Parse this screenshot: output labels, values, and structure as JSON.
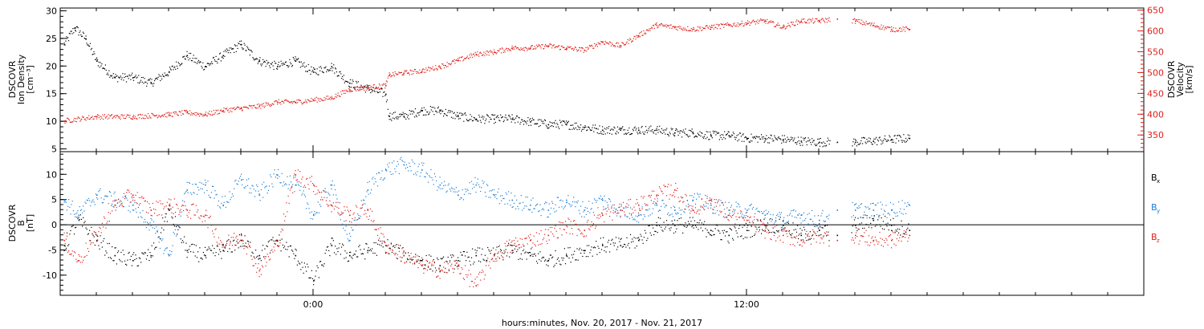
{
  "colors": {
    "black": "#000000",
    "red": "#e0201b",
    "blue": "#1c7ed6"
  },
  "xlabel": "hours:minutes, Nov. 20, 2017 - Nov. 21, 2017",
  "x_axis": {
    "start_hours": -7.0,
    "end_hours": 23.0,
    "ticks": [
      {
        "value": 0,
        "label": "0:00"
      },
      {
        "value": 12,
        "label": "12:00"
      }
    ]
  },
  "chart_data": [
    {
      "type": "scatter",
      "panel": "plasma",
      "grid": false,
      "left_axis": {
        "label_lines": [
          "DSCOVR",
          "Ion Density",
          "[cm⁻³]"
        ],
        "ylim": [
          4.5,
          30.5
        ],
        "ticks": [
          5,
          10,
          15,
          20,
          25,
          30
        ],
        "color": "#000000"
      },
      "right_axis": {
        "label_lines": [
          "DSCOVR",
          "Velocity",
          "[km/s]"
        ],
        "ylim": [
          310,
          655
        ],
        "ticks": [
          350,
          400,
          450,
          500,
          550,
          600,
          650
        ],
        "color": "#e0201b"
      },
      "series": [
        {
          "axis": "left",
          "color": "#000000",
          "x": [
            -6.9,
            -6.6,
            -6.3,
            -6.0,
            -5.5,
            -5.0,
            -4.5,
            -4.0,
            -3.5,
            -3.0,
            -2.5,
            -2.0,
            -1.5,
            -1.0,
            -0.5,
            0.0,
            0.5,
            1.0,
            1.5,
            2.0,
            2.1,
            2.5,
            3.0,
            3.5,
            4.0,
            4.5,
            5.0,
            5.5,
            6.0,
            6.5,
            7.0,
            7.5,
            8.0,
            8.5,
            9.0,
            9.5,
            10.0,
            10.5,
            11.0,
            11.5,
            12.0,
            12.5,
            13.0,
            13.5,
            14.0,
            14.5,
            15.0,
            15.5,
            16.0,
            16.5
          ],
          "values": [
            24,
            27,
            25,
            21,
            18,
            18,
            17,
            19,
            22,
            20,
            22,
            24,
            21,
            20,
            21,
            19,
            20,
            17,
            16,
            15,
            11,
            11,
            12,
            12,
            11,
            10.5,
            10.5,
            10.5,
            10,
            9.5,
            9.5,
            9,
            8.5,
            8.5,
            8.5,
            8.5,
            8,
            8,
            7.5,
            7.5,
            7,
            7,
            6.8,
            6.5,
            6.3,
            6.3,
            6.3,
            6.5,
            6.8,
            7
          ]
        },
        {
          "axis": "right",
          "color": "#e0201b",
          "x": [
            -6.9,
            -6.0,
            -5.0,
            -4.0,
            -3.5,
            -3.0,
            -2.5,
            -2.0,
            -1.5,
            -1.0,
            -0.5,
            0.0,
            0.5,
            1.0,
            1.5,
            2.0,
            2.1,
            2.5,
            3.0,
            3.5,
            4.0,
            4.5,
            5.0,
            5.5,
            6.0,
            6.5,
            7.0,
            7.5,
            8.0,
            8.5,
            9.0,
            9.5,
            10.0,
            10.5,
            11.0,
            11.5,
            12.0,
            12.5,
            13.0,
            13.5,
            14.0,
            14.5,
            15.0,
            15.5,
            16.0,
            16.5
          ],
          "values": [
            385,
            395,
            395,
            400,
            405,
            400,
            410,
            415,
            420,
            430,
            430,
            435,
            440,
            460,
            465,
            470,
            495,
            500,
            505,
            515,
            530,
            545,
            550,
            560,
            560,
            565,
            560,
            555,
            575,
            565,
            590,
            615,
            610,
            605,
            610,
            615,
            620,
            625,
            610,
            625,
            625,
            630,
            625,
            615,
            605,
            605
          ]
        }
      ]
    },
    {
      "type": "scatter",
      "panel": "magnetic",
      "grid": false,
      "left_axis": {
        "label_lines": [
          "DSCOVR",
          "B",
          "[nT]"
        ],
        "ylim": [
          -14,
          14.5
        ],
        "ticks": [
          -10,
          -5,
          0,
          5,
          10
        ],
        "color": "#000000"
      },
      "zero_line": true,
      "legend": [
        {
          "text": "B",
          "sub": "x",
          "color": "#000000"
        },
        {
          "text": "B",
          "sub": "y",
          "color": "#1c7ed6"
        },
        {
          "text": "B",
          "sub": "z",
          "color": "#e0201b"
        }
      ],
      "series": [
        {
          "name": "Bx",
          "color": "#000000",
          "x": [
            -6.9,
            -6.5,
            -6.0,
            -5.5,
            -5.0,
            -4.5,
            -4.0,
            -3.5,
            -3.0,
            -2.5,
            -2.0,
            -1.5,
            -1.0,
            -0.5,
            0.0,
            0.5,
            1.0,
            1.5,
            2.0,
            2.5,
            3.0,
            3.5,
            4.0,
            4.5,
            5.0,
            5.5,
            6.0,
            6.5,
            7.0,
            7.5,
            8.0,
            8.5,
            9.0,
            9.5,
            10.0,
            10.5,
            11.0,
            11.5,
            12.0,
            12.5,
            13.0,
            13.5,
            14.0,
            14.5,
            15.0,
            15.5,
            16.0,
            16.5
          ],
          "values": [
            -4,
            1,
            -3,
            -6,
            -7,
            -6,
            3,
            -5,
            -6,
            -5,
            -3,
            -6,
            -3,
            -6,
            -11,
            -4,
            -6,
            -5,
            -4,
            -6,
            -7,
            -8,
            -7,
            -6,
            -6,
            -5,
            -6,
            -7,
            -6,
            -5,
            -4,
            -4,
            -3,
            0,
            0,
            0,
            -1,
            -2,
            -1,
            0,
            0,
            -2,
            -1,
            -2,
            0,
            1,
            0,
            -1
          ]
        },
        {
          "name": "By",
          "color": "#1c7ed6",
          "x": [
            -6.9,
            -6.5,
            -6.0,
            -5.5,
            -5.0,
            -4.5,
            -4.0,
            -3.5,
            -3.0,
            -2.5,
            -2.0,
            -1.5,
            -1.0,
            -0.5,
            0.0,
            0.5,
            1.0,
            1.5,
            2.0,
            2.5,
            3.0,
            3.5,
            4.0,
            4.5,
            5.0,
            5.5,
            6.0,
            6.5,
            7.0,
            7.5,
            8.0,
            8.5,
            9.0,
            9.5,
            10.0,
            10.5,
            11.0,
            11.5,
            12.0,
            12.5,
            13.0,
            13.5,
            14.0,
            14.5,
            15.0,
            15.5,
            16.0,
            16.5
          ],
          "values": [
            5,
            2,
            6,
            5,
            4,
            0,
            -6,
            7,
            8,
            4,
            9,
            6,
            10,
            8,
            2,
            8,
            -3,
            7,
            11,
            12,
            11,
            8,
            6,
            8,
            6,
            5,
            4,
            3,
            5,
            3,
            5,
            3,
            2,
            4,
            3,
            5,
            4,
            3,
            3,
            2,
            1,
            2,
            1,
            3,
            3,
            3,
            3,
            4
          ]
        },
        {
          "name": "Bz",
          "color": "#e0201b",
          "x": [
            -6.9,
            -6.5,
            -6.0,
            -5.5,
            -5.0,
            -4.5,
            -4.0,
            -3.5,
            -3.0,
            -2.5,
            -2.0,
            -1.5,
            -1.0,
            -0.5,
            0.0,
            0.5,
            1.0,
            1.5,
            2.0,
            2.5,
            3.0,
            3.5,
            4.0,
            4.5,
            5.0,
            5.5,
            6.0,
            6.5,
            7.0,
            7.5,
            8.0,
            8.5,
            9.0,
            9.5,
            10.0,
            10.5,
            11.0,
            11.5,
            12.0,
            12.5,
            13.0,
            13.5,
            14.0,
            14.5,
            15.0,
            15.5,
            16.0,
            16.5
          ],
          "values": [
            -3,
            -7,
            -2,
            4,
            6,
            3,
            4,
            3,
            2,
            -4,
            -2,
            -9,
            -4,
            10,
            8,
            4,
            2,
            3,
            -4,
            -6,
            -8,
            -9,
            -8,
            -12,
            -6,
            -4,
            -3,
            -2,
            0,
            -1,
            2,
            3,
            4,
            6,
            7,
            3,
            5,
            2,
            1,
            -1,
            -2,
            -3,
            -2,
            -3,
            -2,
            -3,
            -3,
            -2
          ]
        }
      ]
    }
  ]
}
